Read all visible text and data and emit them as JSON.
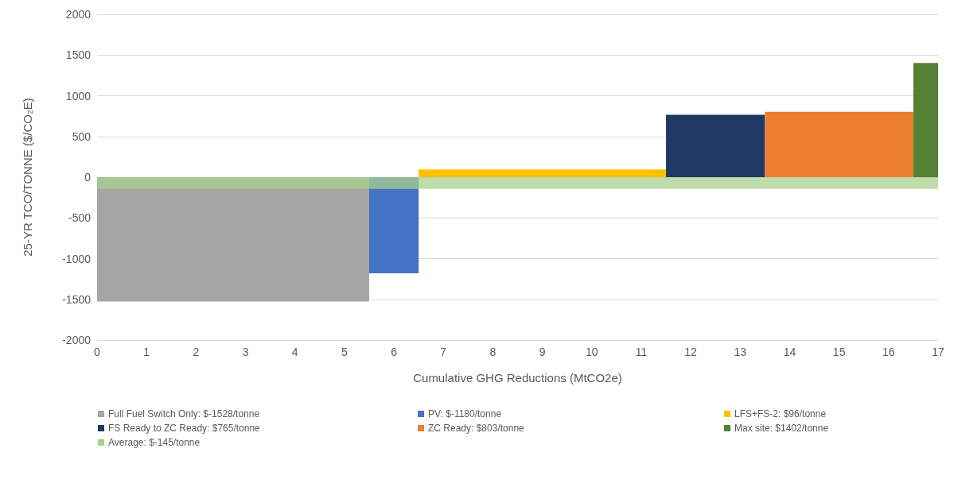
{
  "chart_data": {
    "type": "area",
    "xlabel": "Cumulative GHG Reductions (MtCO2e)",
    "ylabel": "25-YR TCO/TONNE ($/CO₂E)",
    "xlim": [
      0,
      17
    ],
    "xticks": [
      0,
      1,
      2,
      3,
      4,
      5,
      6,
      7,
      8,
      9,
      10,
      11,
      12,
      13,
      14,
      15,
      16,
      17
    ],
    "ylim": [
      -2000,
      2000
    ],
    "yticks": [
      -2000,
      -1500,
      -1000,
      -500,
      0,
      500,
      1000,
      1500,
      2000
    ],
    "grid": "y",
    "legend": "bottom",
    "marker": "none",
    "series": [
      {
        "name": "Full Fuel Switch Only: $-1528/tonne",
        "color": "#a5a5a5",
        "x": [
          0,
          5.5
        ],
        "values": [
          -1528,
          -1528
        ]
      },
      {
        "name": "PV: $-1180/tonne",
        "color": "#4472c4",
        "x": [
          5.5,
          6.5
        ],
        "values": [
          -1180,
          -1180
        ]
      },
      {
        "name": "LFS+FS-2: $96/tonne",
        "color": "#ffc000",
        "x": [
          6.5,
          11.5
        ],
        "values": [
          96,
          96
        ]
      },
      {
        "name": "FS Ready to ZC Ready: $765/tonne",
        "color": "#203864",
        "x": [
          11.5,
          13.5
        ],
        "values": [
          765,
          765
        ]
      },
      {
        "name": "ZC Ready: $803/tonne",
        "color": "#ed7d31",
        "x": [
          13.5,
          16.5
        ],
        "values": [
          803,
          803
        ]
      },
      {
        "name": "Max site: $1402/tonne",
        "color": "#548235",
        "x": [
          16.5,
          17
        ],
        "values": [
          1402,
          1402
        ]
      },
      {
        "name": "Average: $-145/tonne",
        "color": "#a9d18e",
        "x": [
          0,
          17
        ],
        "values": [
          -145,
          -145
        ]
      }
    ]
  }
}
